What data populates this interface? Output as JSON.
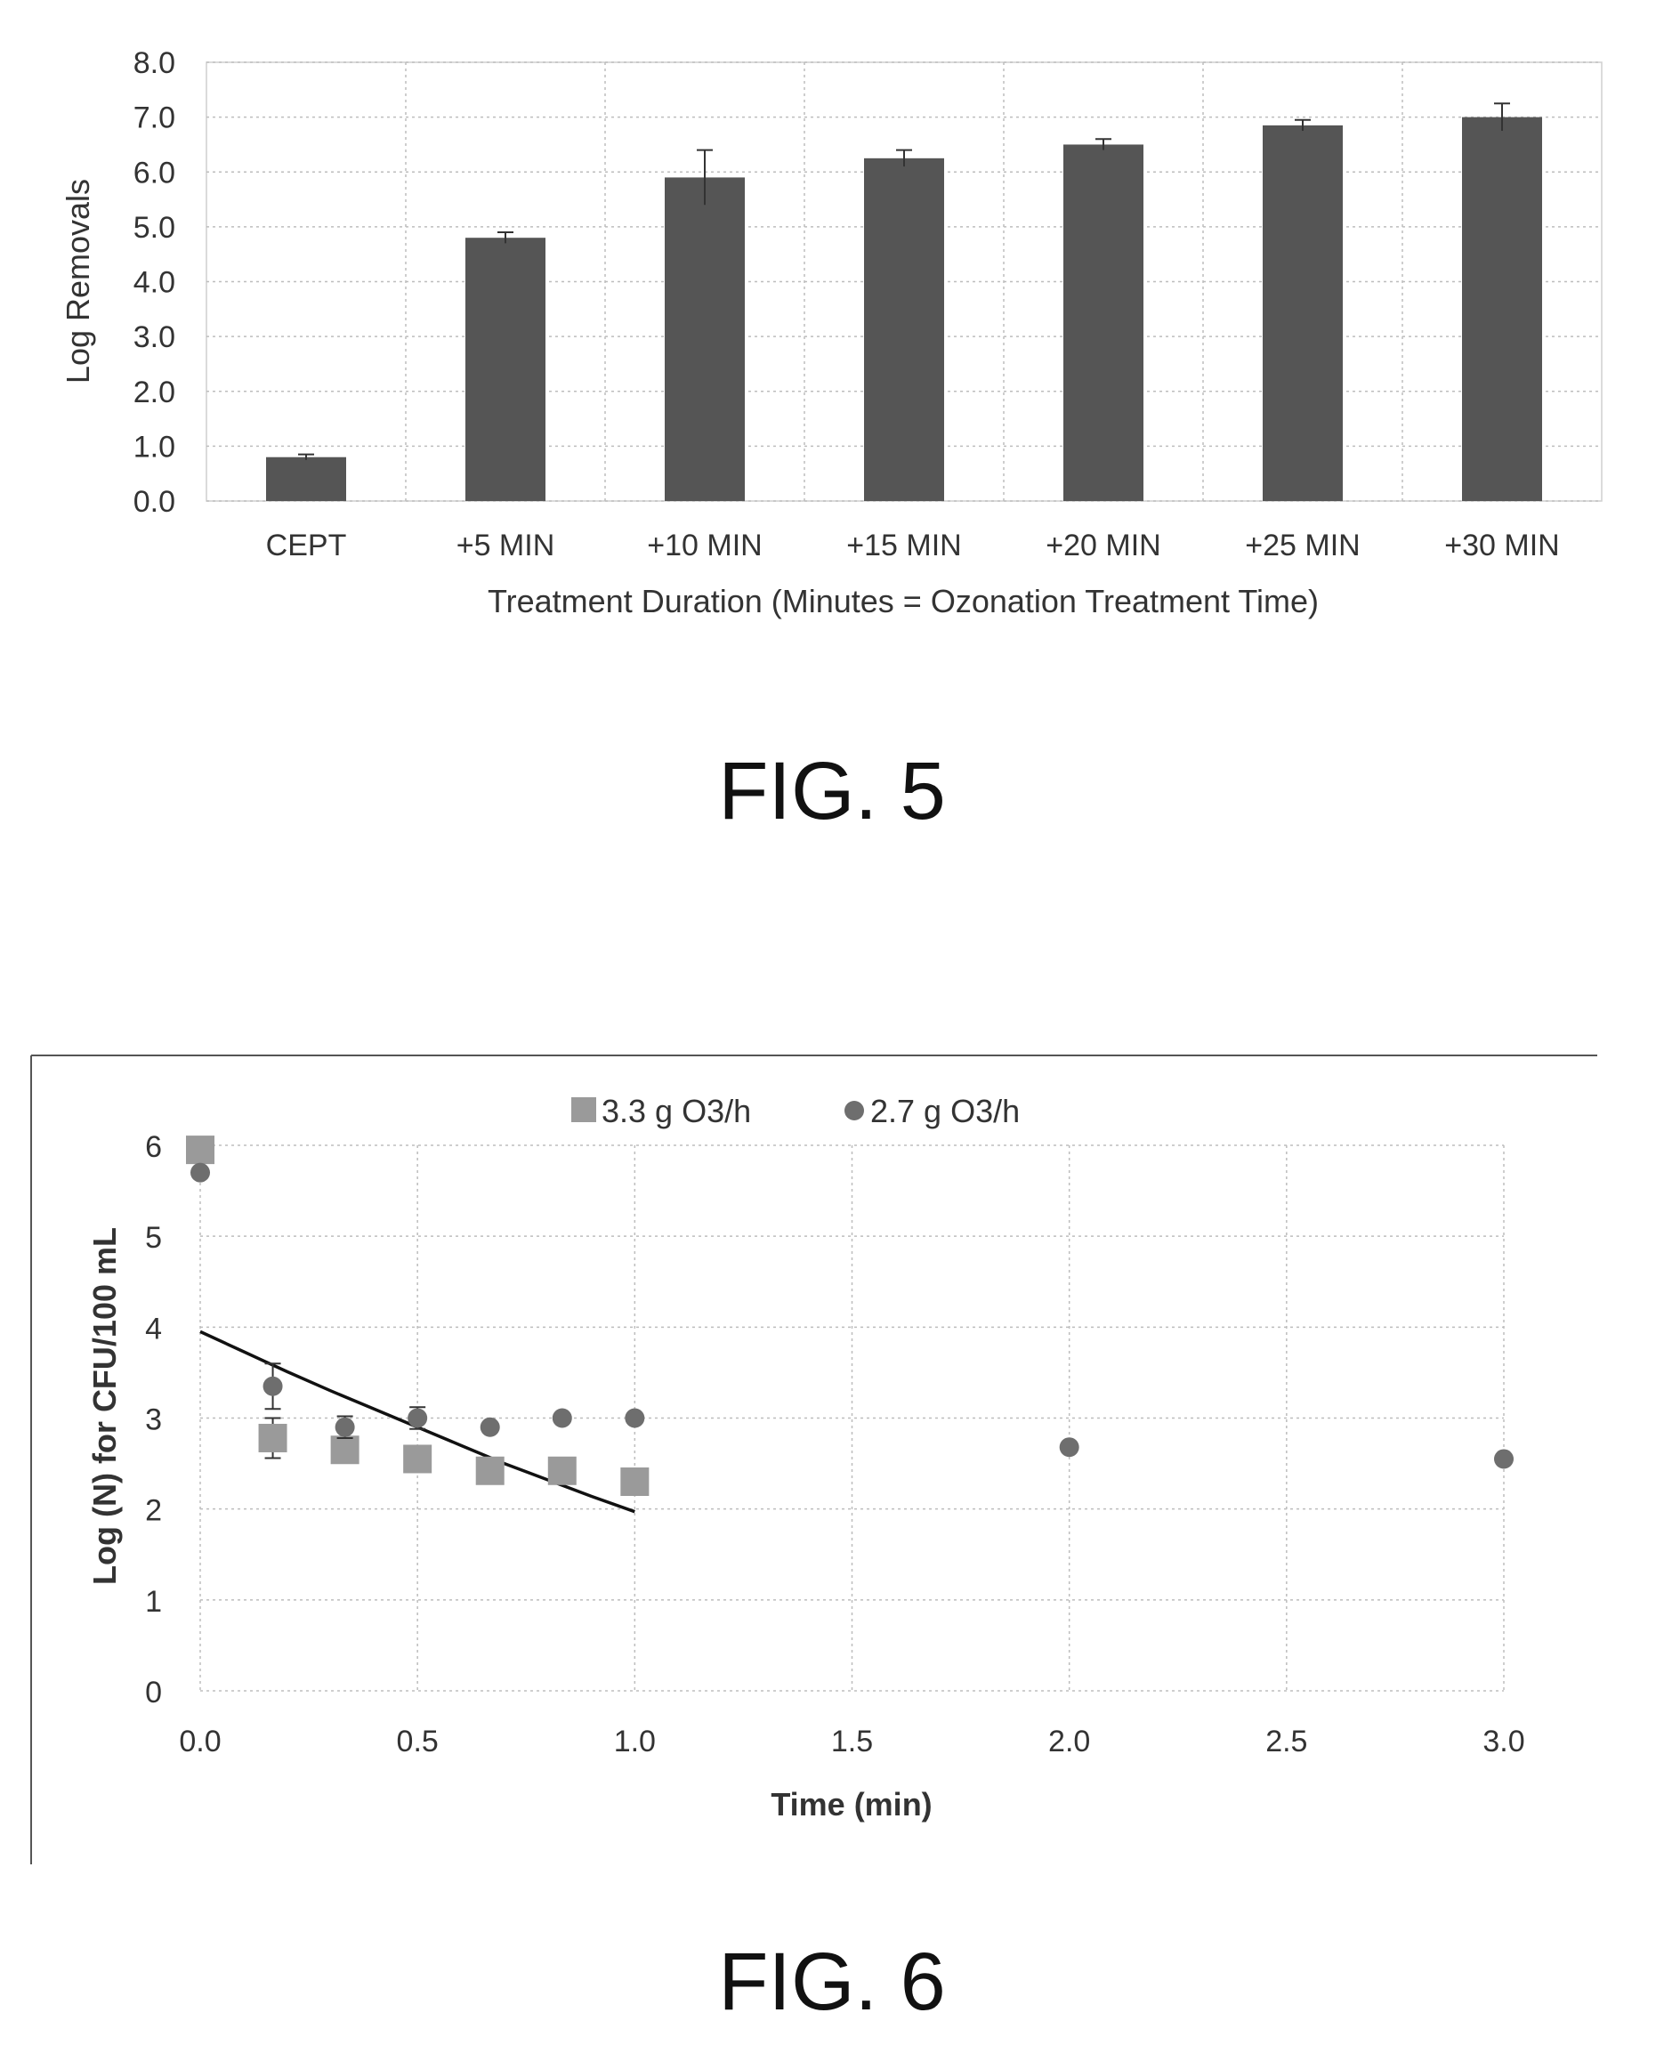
{
  "figures": {
    "fig5_caption": "FIG. 5",
    "fig6_caption": "FIG. 6"
  },
  "chart_data": [
    {
      "type": "bar",
      "categories": [
        "CEPT",
        "+5 MIN",
        "+10 MIN",
        "+15 MIN",
        "+20 MIN",
        "+25 MIN",
        "+30 MIN"
      ],
      "values": [
        0.8,
        4.8,
        5.9,
        6.25,
        6.5,
        6.85,
        7.0
      ],
      "error": [
        0.05,
        0.1,
        0.5,
        0.15,
        0.1,
        0.1,
        0.25
      ],
      "ylabel": "Log Removals",
      "xlabel": "Treatment  Duration  (Minutes = Ozonation Treatment  Time)",
      "ylim": [
        0,
        8
      ],
      "yticks": [
        "0.0",
        "1.0",
        "2.0",
        "3.0",
        "4.0",
        "5.0",
        "6.0",
        "7.0",
        "8.0"
      ],
      "grid": "dotted",
      "bar_color": "#555555"
    },
    {
      "type": "scatter",
      "xlabel": "Time (min)",
      "ylabel": "Log (N) for CFU/100 mL",
      "xlim": [
        0,
        3
      ],
      "ylim": [
        0,
        6
      ],
      "xticks": [
        "0.0",
        "0.5",
        "1.0",
        "1.5",
        "2.0",
        "2.5",
        "3.0"
      ],
      "yticks": [
        "0",
        "1",
        "2",
        "3",
        "4",
        "5",
        "6"
      ],
      "legend_position": "top",
      "series": [
        {
          "name": "3.3 g O3/h",
          "marker": "square",
          "color": "#9a9a9a",
          "points": [
            [
              0.0,
              5.95
            ],
            [
              0.167,
              2.78
            ],
            [
              0.333,
              2.65
            ],
            [
              0.5,
              2.55
            ],
            [
              0.667,
              2.42
            ],
            [
              0.833,
              2.42
            ],
            [
              1.0,
              2.3
            ]
          ],
          "error": [
            0,
            0.22,
            0,
            0,
            0,
            0,
            0
          ]
        },
        {
          "name": "2.7 g O3/h",
          "marker": "circle",
          "color": "#6e6e6e",
          "points": [
            [
              0.0,
              5.7
            ],
            [
              0.167,
              3.35
            ],
            [
              0.333,
              2.9
            ],
            [
              0.5,
              3.0
            ],
            [
              0.667,
              2.9
            ],
            [
              0.833,
              3.0
            ],
            [
              1.0,
              3.0
            ],
            [
              2.0,
              2.68
            ],
            [
              3.0,
              2.55
            ]
          ],
          "error": [
            0,
            0.25,
            0.12,
            0.12,
            0,
            0,
            0,
            0,
            0
          ]
        }
      ],
      "fit_line": {
        "color": "#111111",
        "points": [
          [
            0.0,
            3.95
          ],
          [
            0.1,
            3.73
          ],
          [
            0.2,
            3.51
          ],
          [
            0.3,
            3.3
          ],
          [
            0.4,
            3.1
          ],
          [
            0.5,
            2.9
          ],
          [
            0.6,
            2.7
          ],
          [
            0.7,
            2.5
          ],
          [
            0.8,
            2.32
          ],
          [
            0.9,
            2.14
          ],
          [
            1.0,
            1.97
          ]
        ]
      }
    }
  ]
}
